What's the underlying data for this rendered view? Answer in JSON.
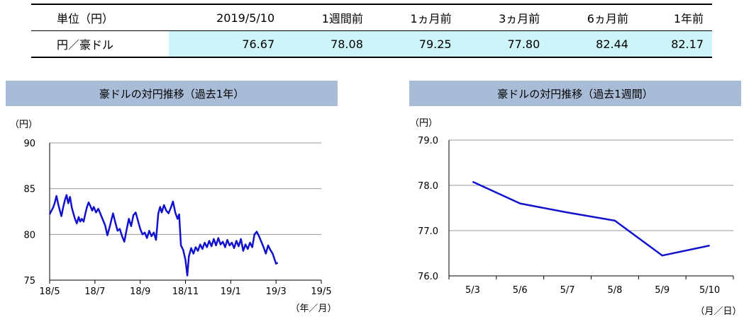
{
  "table": {
    "header": [
      "単位（円）",
      "2019/5/10",
      "1週間前",
      "1ヵ月前",
      "3ヵ月前",
      "6ヵ月前",
      "1年前"
    ],
    "row": {
      "label": "円／豪ドル",
      "values": [
        "76.67",
        "78.08",
        "79.25",
        "77.80",
        "82.44",
        "82.17"
      ]
    }
  },
  "panel_left": {
    "title": "豪ドルの対円推移（過去1年）"
  },
  "panel_right": {
    "title": "豪ドルの対円推移（過去1週間）"
  },
  "colors": {
    "line": "#1212cc",
    "header_bg": "#a9bcd7",
    "table_highlight": "#cdf4f9",
    "grid": "#999999"
  },
  "chart_data": [
    {
      "type": "line",
      "unit_label": "（円）",
      "xlabel": "（年／月）",
      "ylim": [
        75,
        90
      ],
      "yticks": [
        "90",
        "85",
        "80",
        "75"
      ],
      "xlim": [
        0,
        12
      ],
      "xticks": [
        {
          "x": 0,
          "label": "18/5"
        },
        {
          "x": 2,
          "label": "18/7"
        },
        {
          "x": 4,
          "label": "18/9"
        },
        {
          "x": 6,
          "label": "18/11"
        },
        {
          "x": 8,
          "label": "19/1"
        },
        {
          "x": 10,
          "label": "19/3"
        },
        {
          "x": 12,
          "label": "19/5"
        }
      ],
      "series": [
        {
          "points": [
            [
              0.0,
              82.2
            ],
            [
              0.08,
              82.6
            ],
            [
              0.15,
              82.9
            ],
            [
              0.22,
              83.4
            ],
            [
              0.3,
              84.2
            ],
            [
              0.38,
              83.3
            ],
            [
              0.45,
              82.6
            ],
            [
              0.52,
              82.0
            ],
            [
              0.6,
              83.0
            ],
            [
              0.68,
              83.8
            ],
            [
              0.75,
              84.3
            ],
            [
              0.82,
              83.4
            ],
            [
              0.9,
              84.1
            ],
            [
              0.98,
              82.9
            ],
            [
              1.05,
              82.3
            ],
            [
              1.12,
              81.7
            ],
            [
              1.2,
              81.2
            ],
            [
              1.28,
              81.9
            ],
            [
              1.35,
              81.4
            ],
            [
              1.42,
              81.7
            ],
            [
              1.5,
              81.4
            ],
            [
              1.58,
              82.3
            ],
            [
              1.65,
              83.0
            ],
            [
              1.72,
              83.5
            ],
            [
              1.8,
              83.1
            ],
            [
              1.88,
              82.6
            ],
            [
              1.95,
              83.0
            ],
            [
              2.05,
              82.4
            ],
            [
              2.15,
              82.8
            ],
            [
              2.25,
              82.2
            ],
            [
              2.35,
              81.6
            ],
            [
              2.45,
              81.0
            ],
            [
              2.55,
              79.9
            ],
            [
              2.65,
              80.8
            ],
            [
              2.72,
              81.5
            ],
            [
              2.8,
              82.3
            ],
            [
              2.9,
              81.3
            ],
            [
              3.0,
              80.4
            ],
            [
              3.1,
              80.6
            ],
            [
              3.2,
              79.8
            ],
            [
              3.3,
              79.2
            ],
            [
              3.4,
              80.5
            ],
            [
              3.5,
              81.7
            ],
            [
              3.6,
              80.9
            ],
            [
              3.7,
              82.1
            ],
            [
              3.8,
              82.4
            ],
            [
              3.9,
              81.5
            ],
            [
              4.0,
              80.6
            ],
            [
              4.1,
              80.0
            ],
            [
              4.2,
              80.2
            ],
            [
              4.3,
              79.6
            ],
            [
              4.4,
              80.4
            ],
            [
              4.5,
              79.8
            ],
            [
              4.6,
              80.2
            ],
            [
              4.7,
              79.4
            ],
            [
              4.8,
              82.3
            ],
            [
              4.88,
              83.0
            ],
            [
              4.95,
              82.4
            ],
            [
              5.05,
              83.2
            ],
            [
              5.15,
              82.6
            ],
            [
              5.25,
              82.3
            ],
            [
              5.35,
              82.9
            ],
            [
              5.45,
              83.6
            ],
            [
              5.55,
              82.4
            ],
            [
              5.65,
              81.7
            ],
            [
              5.72,
              82.2
            ],
            [
              5.8,
              78.8
            ],
            [
              5.9,
              78.3
            ],
            [
              6.0,
              77.2
            ],
            [
              6.08,
              75.5
            ],
            [
              6.15,
              77.6
            ],
            [
              6.25,
              78.5
            ],
            [
              6.35,
              77.9
            ],
            [
              6.45,
              78.6
            ],
            [
              6.55,
              78.2
            ],
            [
              6.65,
              78.9
            ],
            [
              6.75,
              78.4
            ],
            [
              6.85,
              79.1
            ],
            [
              6.95,
              78.6
            ],
            [
              7.05,
              79.3
            ],
            [
              7.15,
              78.7
            ],
            [
              7.25,
              79.5
            ],
            [
              7.35,
              78.8
            ],
            [
              7.45,
              79.6
            ],
            [
              7.55,
              78.9
            ],
            [
              7.65,
              79.2
            ],
            [
              7.75,
              78.6
            ],
            [
              7.85,
              79.4
            ],
            [
              7.95,
              78.8
            ],
            [
              8.05,
              79.1
            ],
            [
              8.15,
              78.5
            ],
            [
              8.25,
              79.3
            ],
            [
              8.35,
              78.7
            ],
            [
              8.45,
              79.5
            ],
            [
              8.55,
              78.2
            ],
            [
              8.65,
              78.9
            ],
            [
              8.75,
              78.4
            ],
            [
              8.85,
              79.1
            ],
            [
              8.95,
              78.6
            ],
            [
              9.05,
              80.0
            ],
            [
              9.15,
              80.3
            ],
            [
              9.25,
              79.8
            ],
            [
              9.35,
              79.2
            ],
            [
              9.45,
              78.6
            ],
            [
              9.55,
              77.9
            ],
            [
              9.65,
              78.8
            ],
            [
              9.75,
              78.3
            ],
            [
              9.85,
              77.9
            ],
            [
              9.92,
              77.4
            ],
            [
              10.0,
              76.8
            ],
            [
              10.08,
              76.9
            ]
          ]
        }
      ]
    },
    {
      "type": "line",
      "unit_label": "（円）",
      "xlabel": "（月／日）",
      "categories": [
        "5/3",
        "5/6",
        "5/7",
        "5/8",
        "5/9",
        "5/10"
      ],
      "ylim": [
        76.0,
        79.0
      ],
      "yticks": [
        "79.0",
        "78.0",
        "77.0",
        "76.0"
      ],
      "series": [
        {
          "values": [
            78.08,
            77.6,
            77.4,
            77.22,
            76.45,
            76.67
          ]
        }
      ]
    }
  ]
}
